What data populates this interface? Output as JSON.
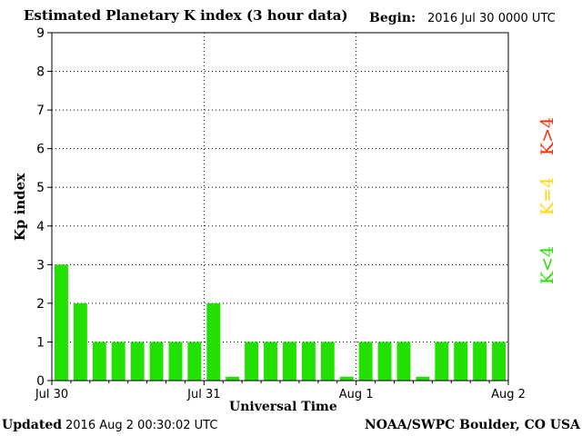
{
  "header": {
    "title": "Estimated Planetary K index (3 hour data)",
    "begin_label": "Begin:",
    "begin_value": "2016 Jul 30 0000 UTC"
  },
  "footer": {
    "updated_label": "Updated",
    "updated_value": "2016 Aug  2 00:30:02 UTC",
    "credit": "NOAA/SWPC Boulder, CO USA"
  },
  "legend": {
    "high": {
      "label": "K>4",
      "color": "#ff2a00"
    },
    "mid": {
      "label": "K=4",
      "color": "#ffd700"
    },
    "low": {
      "label": "K<4",
      "color": "#22e000"
    }
  },
  "chart_data": {
    "type": "bar",
    "title": "Estimated Planetary K index (3 hour data)",
    "xlabel": "Universal Time",
    "ylabel": "Kp index",
    "ylim": [
      0,
      9
    ],
    "yticks": [
      0,
      1,
      2,
      3,
      4,
      5,
      6,
      7,
      8,
      9
    ],
    "xticks": [
      "Jul 30",
      "Jul 31",
      "Aug 1",
      "Aug 2"
    ],
    "grid": true,
    "interval_hours": 3,
    "values": [
      3,
      2,
      1,
      1,
      1,
      1,
      1,
      1,
      2,
      0.1,
      1,
      1,
      1,
      1,
      1,
      0.1,
      1,
      1,
      1,
      0.1,
      1,
      1,
      1,
      1
    ],
    "bar_color": "#22e000"
  }
}
